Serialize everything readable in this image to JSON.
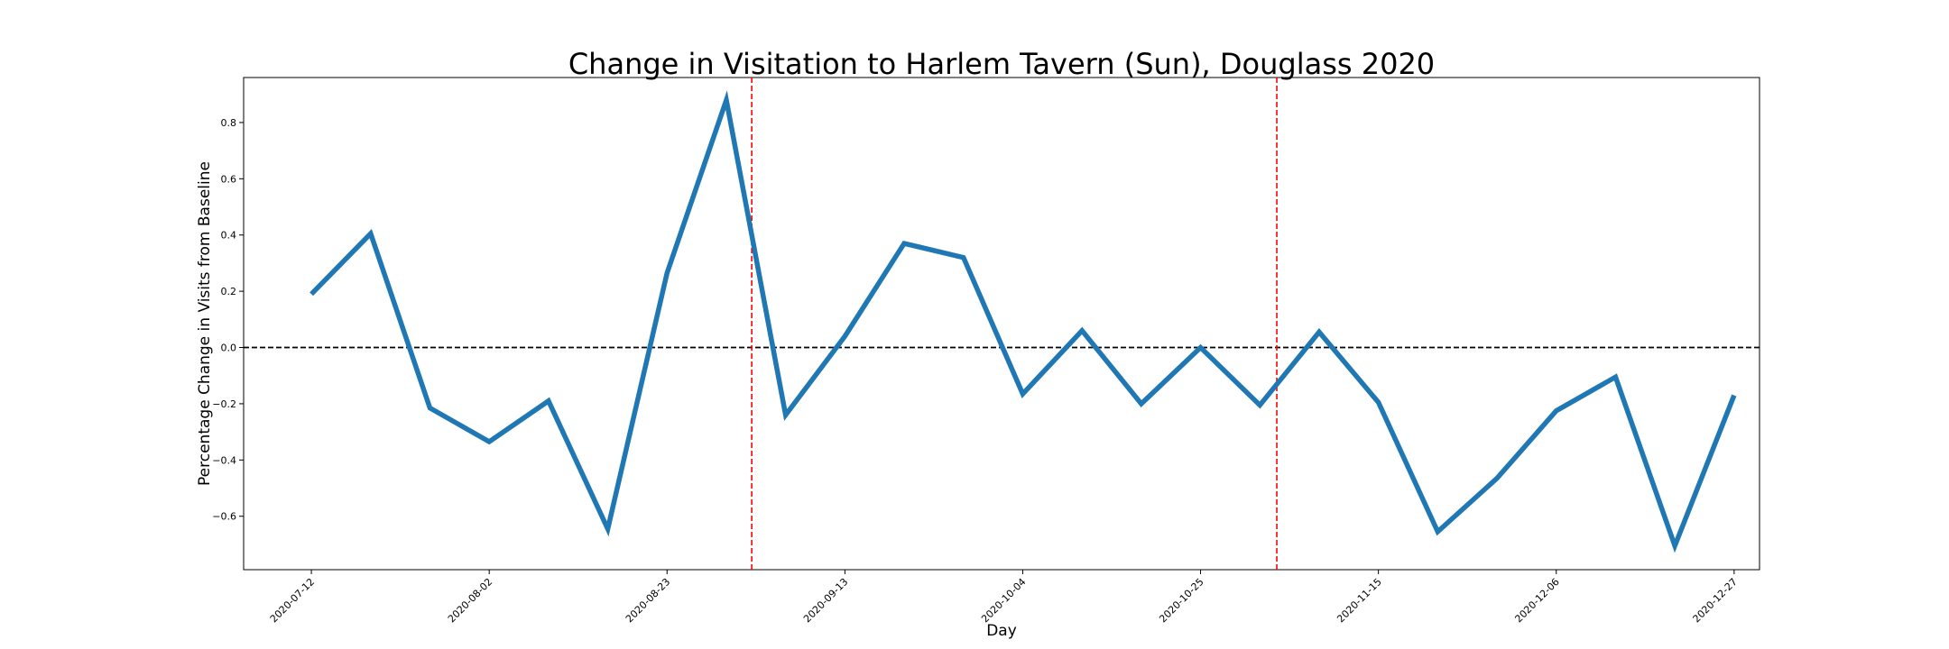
{
  "chart_data": {
    "type": "line",
    "title": "Change in Visitation to Harlem Tavern (Sun), Douglass 2020",
    "xlabel": "Day",
    "ylabel": "Percentage Change in Visits from Baseline",
    "x": [
      "2020-07-12",
      "2020-07-19",
      "2020-07-26",
      "2020-08-02",
      "2020-08-09",
      "2020-08-16",
      "2020-08-23",
      "2020-08-30",
      "2020-09-06",
      "2020-09-13",
      "2020-09-20",
      "2020-09-27",
      "2020-10-04",
      "2020-10-11",
      "2020-10-18",
      "2020-10-25",
      "2020-11-01",
      "2020-11-08",
      "2020-11-15",
      "2020-11-22",
      "2020-11-29",
      "2020-12-06",
      "2020-12-13",
      "2020-12-20",
      "2020-12-27"
    ],
    "series": [
      {
        "values": [
          0.19,
          0.405,
          -0.215,
          -0.335,
          -0.19,
          -0.645,
          0.265,
          0.88,
          -0.24,
          0.04,
          0.37,
          0.32,
          -0.165,
          0.06,
          -0.2,
          0.0,
          -0.205,
          0.055,
          -0.195,
          -0.655,
          -0.465,
          -0.225,
          -0.105,
          -0.705,
          -0.17
        ],
        "color": "#1f77b4"
      }
    ],
    "xticks": [
      "2020-07-12",
      "2020-08-02",
      "2020-08-23",
      "2020-09-13",
      "2020-10-04",
      "2020-10-25",
      "2020-11-15",
      "2020-12-06",
      "2020-12-27"
    ],
    "yticks": [
      -0.6,
      -0.4,
      -0.2,
      0.0,
      0.2,
      0.4,
      0.6,
      0.8
    ],
    "ylim": [
      -0.79,
      0.96
    ],
    "xlim": [
      "2020-07-04",
      "2020-12-30"
    ],
    "reference_lines": {
      "horizontal": {
        "y": 0.0,
        "color": "#000000",
        "style": "dashed"
      },
      "vertical": [
        {
          "x": "2020-09-02",
          "color": "#ff0000",
          "style": "dashed"
        },
        {
          "x": "2020-11-03",
          "color": "#ff0000",
          "style": "dashed"
        }
      ]
    },
    "grid": false,
    "legend": "none"
  }
}
